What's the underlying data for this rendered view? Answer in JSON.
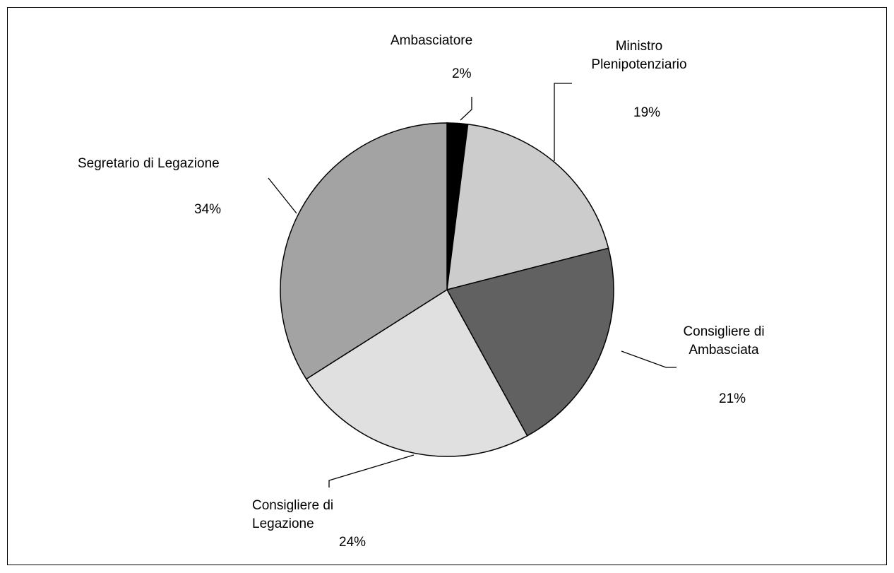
{
  "chart_data": {
    "type": "pie",
    "categories": [
      "Ambasciatore",
      "Ministro Plenipotenziario",
      "Consigliere di Ambasciata",
      "Consigliere di Legazione",
      "Segretario di Legazione"
    ],
    "values": [
      2,
      19,
      21,
      24,
      34
    ],
    "value_labels": [
      "2%",
      "19%",
      "21%",
      "24%",
      "34%"
    ],
    "colors": [
      "#000000",
      "#cccccc",
      "#616161",
      "#e0e0e0",
      "#a3a3a3"
    ]
  }
}
